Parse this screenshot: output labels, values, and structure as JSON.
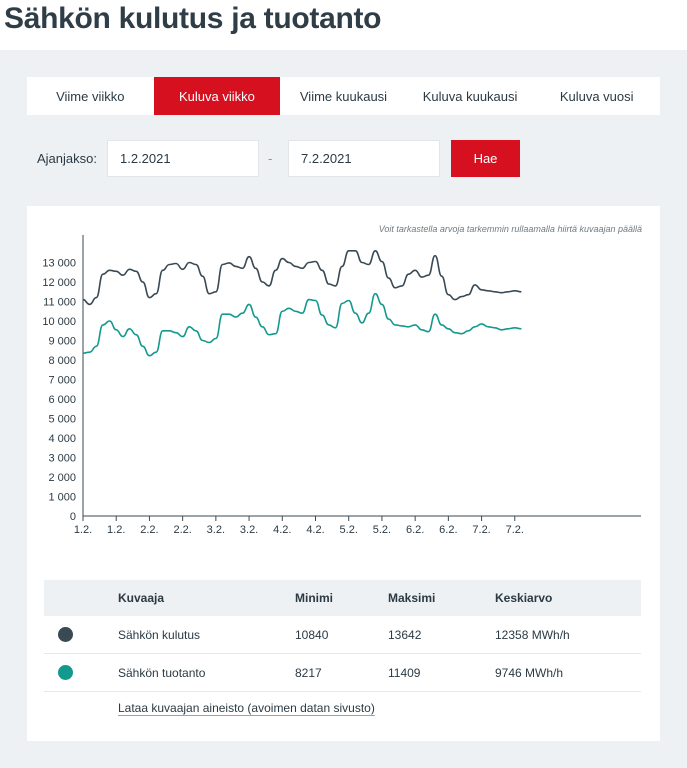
{
  "page": {
    "title": "Sähkön kulutus ja tuotanto"
  },
  "tabs": [
    {
      "label": "Viime viikko",
      "active": false
    },
    {
      "label": "Kuluva viikko",
      "active": true
    },
    {
      "label": "Viime kuukausi",
      "active": false
    },
    {
      "label": "Kuluva kuukausi",
      "active": false
    },
    {
      "label": "Kuluva vuosi",
      "active": false
    }
  ],
  "period": {
    "label": "Ajanjakso:",
    "start": "1.2.2021",
    "separator": "-",
    "end": "7.2.2021",
    "button": "Hae"
  },
  "chart_hint": "Voit tarkastella arvoja tarkemmin rullaamalla hiirtä kuvaajan päällä",
  "colors": {
    "accent": "#d6101f",
    "consumption": "#3a4a55",
    "production": "#14998e"
  },
  "chart_data": {
    "type": "line",
    "title": "",
    "xlabel": "",
    "ylabel": "",
    "ylim": [
      0,
      14000
    ],
    "yticks": [
      "0",
      "1 000",
      "2 000",
      "3 000",
      "4 000",
      "5 000",
      "6 000",
      "7 000",
      "8 000",
      "9 000",
      "10 000",
      "11 000",
      "12 000",
      "13 000"
    ],
    "xlim": [
      0,
      168
    ],
    "xticks": [
      {
        "x": 0,
        "label": "1.2."
      },
      {
        "x": 10,
        "label": "1.2."
      },
      {
        "x": 20,
        "label": "2.2."
      },
      {
        "x": 30,
        "label": "2.2."
      },
      {
        "x": 40,
        "label": "3.2."
      },
      {
        "x": 50,
        "label": "3.2."
      },
      {
        "x": 60,
        "label": "4.2."
      },
      {
        "x": 70,
        "label": "4.2."
      },
      {
        "x": 80,
        "label": "5.2."
      },
      {
        "x": 90,
        "label": "5.2."
      },
      {
        "x": 100,
        "label": "6.2."
      },
      {
        "x": 110,
        "label": "6.2."
      },
      {
        "x": 120,
        "label": "7.2."
      },
      {
        "x": 130,
        "label": "7.2."
      }
    ],
    "series": [
      {
        "name": "Sähkön kulutus",
        "color": "#3a4a55",
        "x": [
          0,
          2,
          4,
          6,
          8,
          10,
          12,
          14,
          16,
          18,
          20,
          22,
          24,
          26,
          28,
          30,
          32,
          34,
          36,
          38,
          40,
          42,
          44,
          46,
          48,
          50,
          52,
          54,
          56,
          58,
          60,
          62,
          64,
          66,
          68,
          70,
          72,
          74,
          76,
          78,
          80,
          82,
          84,
          86,
          88,
          90,
          92,
          94,
          96,
          98,
          100,
          102,
          104,
          106,
          108,
          110,
          112,
          114,
          116,
          118,
          120,
          122,
          124,
          126,
          128,
          130,
          132
        ],
        "y": [
          11100,
          10850,
          11200,
          12400,
          12600,
          12550,
          12350,
          12650,
          12550,
          12000,
          11200,
          11400,
          12600,
          12900,
          12950,
          12650,
          13000,
          12900,
          12300,
          11400,
          11500,
          12900,
          12980,
          12800,
          12700,
          13300,
          12700,
          12000,
          11800,
          12600,
          13200,
          13000,
          12800,
          12700,
          13000,
          13050,
          12600,
          11900,
          11800,
          12800,
          13600,
          13600,
          13000,
          12900,
          13600,
          13050,
          12200,
          11700,
          11800,
          12400,
          12600,
          12250,
          12350,
          13350,
          12300,
          11350,
          11100,
          11250,
          11350,
          11850,
          11600,
          11550,
          11500,
          11450,
          11500,
          11550,
          11500
        ]
      },
      {
        "name": "Sähkön tuotanto",
        "color": "#14998e",
        "x": [
          0,
          2,
          4,
          6,
          8,
          10,
          12,
          14,
          16,
          18,
          20,
          22,
          24,
          26,
          28,
          30,
          32,
          34,
          36,
          38,
          40,
          42,
          44,
          46,
          48,
          50,
          52,
          54,
          56,
          58,
          60,
          62,
          64,
          66,
          68,
          70,
          72,
          74,
          76,
          78,
          80,
          82,
          84,
          86,
          88,
          90,
          92,
          94,
          96,
          98,
          100,
          102,
          104,
          106,
          108,
          110,
          112,
          114,
          116,
          118,
          120,
          122,
          124,
          126,
          128,
          130,
          132
        ],
        "y": [
          8350,
          8400,
          8700,
          9800,
          10000,
          9550,
          9200,
          9600,
          9300,
          8700,
          8220,
          8400,
          9500,
          9500,
          9400,
          9200,
          9700,
          9500,
          9000,
          8900,
          9100,
          10350,
          10350,
          10200,
          10400,
          10850,
          10200,
          9700,
          9300,
          9350,
          10500,
          10650,
          10500,
          10400,
          11100,
          11050,
          10300,
          9800,
          9650,
          10900,
          11050,
          10400,
          9900,
          10400,
          11400,
          10850,
          10100,
          9800,
          9750,
          9700,
          9800,
          9550,
          9450,
          10350,
          9800,
          9600,
          9400,
          9350,
          9500,
          9700,
          9850,
          9700,
          9650,
          9550,
          9600,
          9650,
          9600
        ]
      }
    ]
  },
  "stats": {
    "headers": {
      "series": "Kuvaaja",
      "min": "Minimi",
      "max": "Maksimi",
      "avg": "Keskiarvo"
    },
    "rows": [
      {
        "name": "Sähkön kulutus",
        "min": "10840",
        "max": "13642",
        "avg": "12358 MWh/h",
        "color": "#3a4a55"
      },
      {
        "name": "Sähkön tuotanto",
        "min": "8217",
        "max": "11409",
        "avg": "9746 MWh/h",
        "color": "#14998e"
      }
    ]
  },
  "download_link": "Lataa kuvaajan aineisto (avoimen datan sivusto)"
}
